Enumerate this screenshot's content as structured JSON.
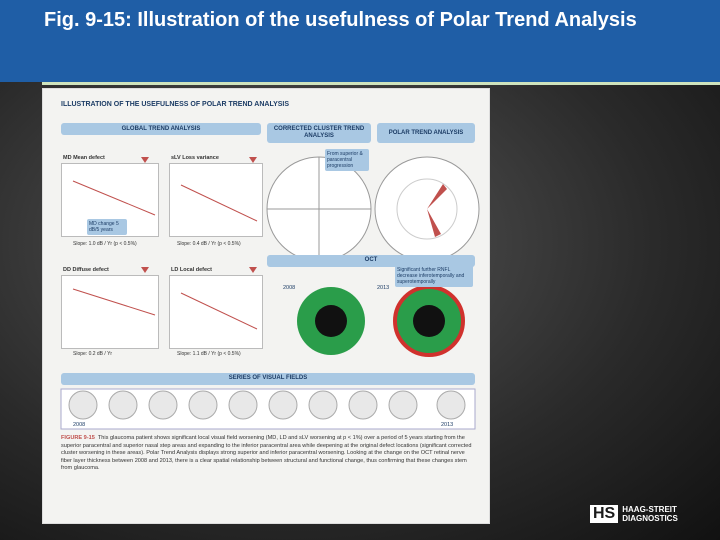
{
  "header": {
    "title": "Fig. 9-15: Illustration of the usefulness of Polar Trend Analysis"
  },
  "figure": {
    "title": "ILLUSTRATION OF THE USEFULNESS OF POLAR TREND ANALYSIS",
    "sections": {
      "global": "GLOBAL TREND ANALYSIS",
      "cluster": "CORRECTED CLUSTER TREND ANALYSIS",
      "polar": "POLAR TREND ANALYSIS",
      "oct": "OCT",
      "fields": "SERIES OF VISUAL FIELDS"
    },
    "plots": [
      {
        "label": "MD Mean defect",
        "slope": "Slope: 1.0 dB / Yr (p < 0.5%)",
        "note": "MD change 5 dB/5 years"
      },
      {
        "label": "sLV Loss variance",
        "slope": "Slope: 0.4 dB / Yr (p < 0.5%)"
      },
      {
        "label": "DD Diffuse defect",
        "slope": "Slope: 0.2 dB / Yr"
      },
      {
        "label": "LD Local defect",
        "slope": "Slope: 1.1 dB / Yr (p < 0.5%)"
      }
    ],
    "cluster_note": "From superior & paracentral progression",
    "oct_note": "Significant further RNFL decrease inferotemporally and superotemporally",
    "years": {
      "start": "2008",
      "end": "2013"
    },
    "caption_label": "FIGURE 9-15",
    "caption": "This glaucoma patient shows significant local visual field worsening (MD, LD and sLV worsening at p < 1%) over a period of 5 years starting from the superior paracentral and superior nasal step areas and expanding to the inferior paracentral area while deepening at the original defect locations (significant corrected cluster worsening in these areas). Polar Trend Analysis displays strong superior and inferior paracentral worsening. Looking at the change on the OCT retinal nerve fiber layer thickness between 2008 and 2013, there is a clear spatial relationship between structural and functional change, thus confirming that these changes stem from glaucoma."
  },
  "logo": {
    "mark": "HS",
    "line1": "HAAG-STREIT",
    "line2": "DIAGNOSTICS"
  }
}
